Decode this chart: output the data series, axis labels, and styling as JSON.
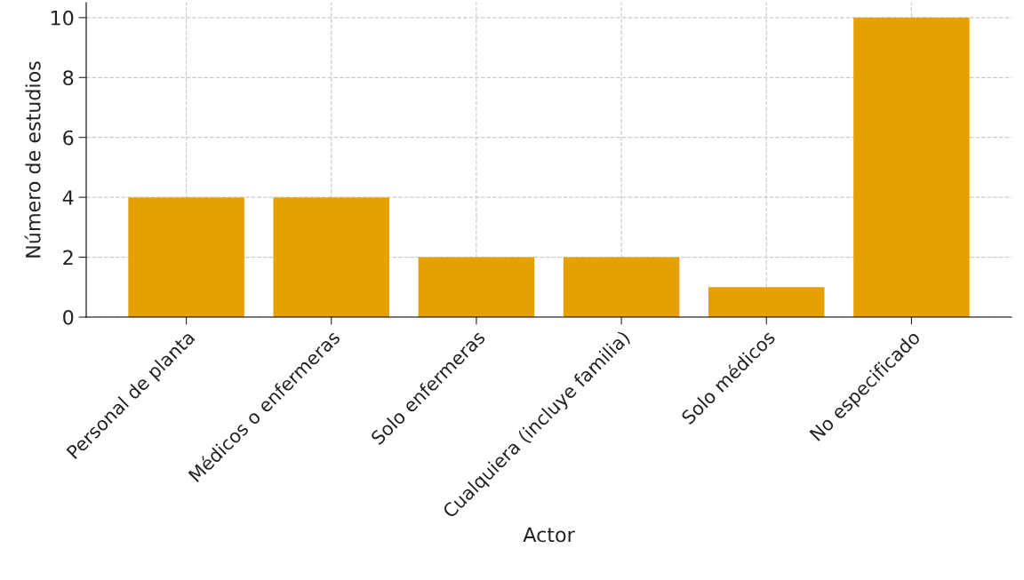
{
  "chart_data": {
    "type": "bar",
    "xlabel": "Actor",
    "ylabel": "Número de estudios",
    "categories": [
      "Personal de planta",
      "Médicos o enfermeras",
      "Solo enfermeras",
      "Cualquiera (incluye familia)",
      "Solo médicos",
      "No especificado"
    ],
    "values": [
      4,
      4,
      2,
      2,
      1,
      10
    ],
    "color": "#e6a100",
    "ylim": [
      0,
      10.5
    ],
    "yticks": [
      0,
      2,
      4,
      6,
      8,
      10
    ],
    "grid": true
  }
}
